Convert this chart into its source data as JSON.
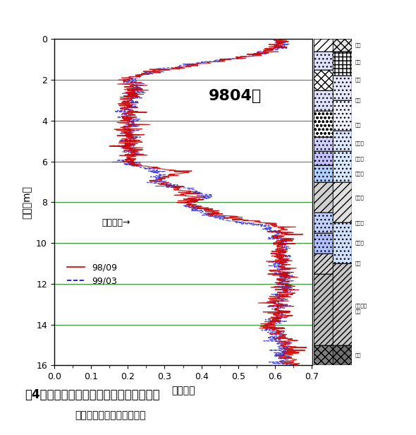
{
  "title": "9804孔",
  "xlabel": "計数率比",
  "ylabel": "深度（m）",
  "xmin": 0,
  "xmax": 0.7,
  "ymin": 0,
  "ymax": 16,
  "xticks": [
    0,
    0.1,
    0.2,
    0.3,
    0.4,
    0.5,
    0.6,
    0.7
  ],
  "yticks": [
    0,
    2,
    4,
    6,
    8,
    10,
    12,
    14,
    16
  ],
  "legend_98": "98/09",
  "legend_99": "99/03",
  "color_98": "#cc0000",
  "color_99": "#0000cc",
  "groundwater_label": "地下水面→",
  "groundwater_depth": 9.0,
  "caption_line1": "図4　中性子水分検層計数率比の季別変化",
  "caption_line2": "（地下水資源研究室測定）"
}
